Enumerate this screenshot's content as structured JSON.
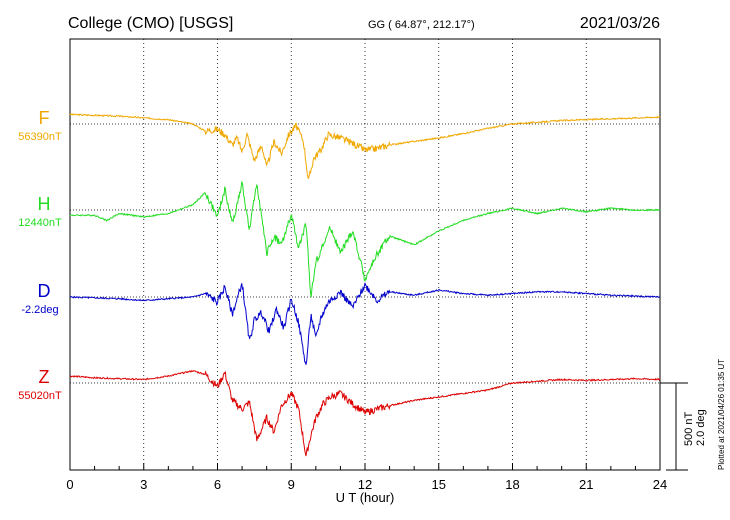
{
  "header": {
    "station": "College (CMO)  [USGS]",
    "coords": "GG ( 64.87°, 212.17°)",
    "date": "2021/03/26"
  },
  "plotted_at": "Plotted at 2021/04/26 01:35 UT",
  "scale": {
    "line1": "500 nT",
    "line2": "2.0 deg"
  },
  "chart_data": {
    "type": "line",
    "xlabel": "U T (hour)",
    "xlim": [
      0,
      24
    ],
    "xticks": [
      "0",
      "3",
      "6",
      "9",
      "12",
      "15",
      "18",
      "21",
      "24"
    ],
    "grid": true,
    "scale_units_per_bar": 500,
    "series": [
      {
        "name": "F",
        "baseline": "56390nT",
        "color": "#f0a800",
        "x": [
          0,
          1,
          2,
          3,
          4,
          5,
          5.5,
          6,
          6.3,
          6.6,
          6.8,
          7,
          7.2,
          7.5,
          7.8,
          8,
          8.3,
          8.6,
          8.9,
          9.2,
          9.5,
          9.7,
          9.9,
          10.2,
          10.5,
          11,
          11.5,
          12,
          12.5,
          13,
          14,
          15,
          16,
          17,
          18,
          19,
          20,
          21,
          22,
          23,
          24
        ],
        "y": [
          55,
          50,
          45,
          35,
          25,
          0,
          -40,
          -30,
          -60,
          -120,
          -80,
          -160,
          -60,
          -210,
          -120,
          -250,
          -100,
          -170,
          -60,
          -10,
          -100,
          -330,
          -200,
          -150,
          -60,
          -80,
          -110,
          -150,
          -140,
          -120,
          -100,
          -80,
          -55,
          -25,
          0,
          10,
          20,
          25,
          30,
          35,
          40
        ]
      },
      {
        "name": "H",
        "baseline": "12440nT",
        "color": "#22dd22",
        "x": [
          0,
          1,
          1.5,
          2,
          3,
          4,
          5,
          5.5,
          6,
          6.3,
          6.6,
          7,
          7.3,
          7.6,
          8,
          8.3,
          8.6,
          9,
          9.3,
          9.6,
          9.8,
          10,
          10.3,
          10.6,
          11,
          11.5,
          12,
          12.5,
          13,
          14,
          15,
          16,
          17,
          18,
          19,
          20,
          21,
          22,
          23,
          24
        ],
        "y": [
          -30,
          -30,
          -60,
          -20,
          -40,
          -20,
          30,
          100,
          -40,
          120,
          -80,
          150,
          -120,
          160,
          -250,
          -150,
          -200,
          -30,
          -220,
          -80,
          -500,
          -300,
          -200,
          -100,
          -250,
          -120,
          -400,
          -250,
          -150,
          -200,
          -120,
          -60,
          -20,
          10,
          -20,
          10,
          -10,
          10,
          0,
          0
        ]
      },
      {
        "name": "D",
        "baseline": "-2.2deg",
        "color": "#0000cc",
        "x": [
          0,
          1,
          2,
          3,
          4,
          5,
          5.5,
          6,
          6.3,
          6.6,
          7,
          7.3,
          7.5,
          7.8,
          8.1,
          8.4,
          8.7,
          9,
          9.3,
          9.6,
          9.8,
          10,
          10.2,
          10.5,
          11,
          11.5,
          12,
          12.5,
          13,
          14,
          15,
          16,
          17,
          18,
          19,
          20,
          21,
          22,
          23,
          24
        ],
        "y": [
          0,
          -5,
          -10,
          -20,
          -10,
          0,
          20,
          -30,
          60,
          -100,
          80,
          -260,
          -130,
          -90,
          -200,
          -70,
          -180,
          -10,
          -150,
          -400,
          -100,
          -240,
          -120,
          -30,
          30,
          -60,
          70,
          -20,
          30,
          10,
          40,
          20,
          10,
          20,
          30,
          30,
          20,
          10,
          5,
          0
        ]
      },
      {
        "name": "Z",
        "baseline": "55020nT",
        "color": "#dd0000",
        "x": [
          0,
          1,
          2,
          3,
          4,
          5,
          5.5,
          6,
          6.3,
          6.6,
          7,
          7.3,
          7.6,
          8,
          8.3,
          8.6,
          9,
          9.3,
          9.6,
          9.8,
          10,
          10.3,
          10.6,
          11,
          11.5,
          12,
          12.5,
          13,
          14,
          15,
          16,
          17,
          18,
          19,
          20,
          21,
          22,
          23,
          24
        ],
        "y": [
          40,
          30,
          25,
          20,
          40,
          70,
          50,
          -20,
          60,
          -100,
          -150,
          -110,
          -330,
          -200,
          -280,
          -130,
          -60,
          -150,
          -420,
          -300,
          -200,
          -120,
          -80,
          -60,
          -120,
          -170,
          -150,
          -130,
          -100,
          -80,
          -60,
          -40,
          0,
          10,
          20,
          15,
          20,
          25,
          20
        ]
      }
    ]
  }
}
